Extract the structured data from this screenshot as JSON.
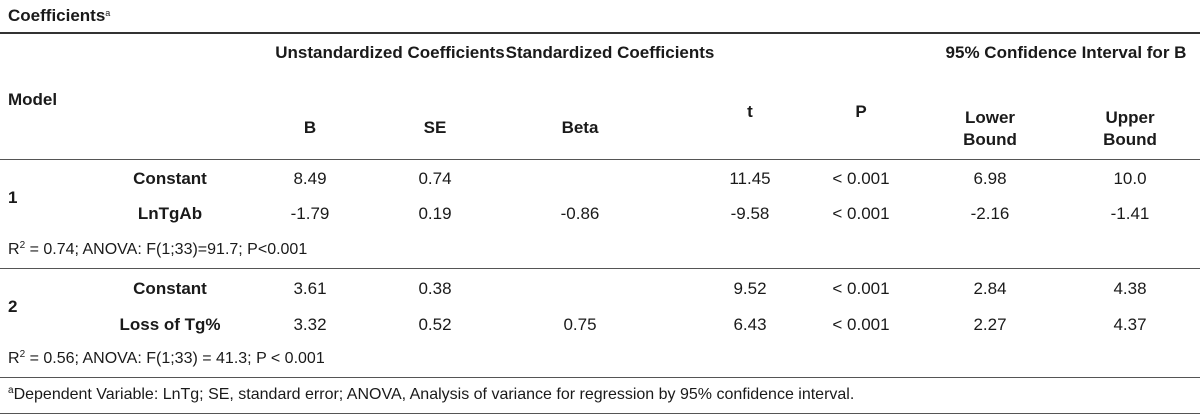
{
  "title": "Coefficients",
  "title_sup": "a",
  "headers": {
    "model": "Model",
    "unstd_group": "Unstandardized Coefficients",
    "std_group": "Standardized Coefficients",
    "ci_group": "95% Confidence Interval for B",
    "t": "t",
    "p": "P",
    "b": "B",
    "se": "SE",
    "beta": "Beta",
    "lower": "Lower Bound",
    "upper": "Upper Bound"
  },
  "models": [
    {
      "id": "1",
      "rows": [
        {
          "name": "Constant",
          "b": "8.49",
          "se": "0.74",
          "beta": "",
          "t": "11.45",
          "p": "< 0.001",
          "lower": "6.98",
          "upper": "10.0"
        },
        {
          "name": "LnTgAb",
          "b": "-1.79",
          "se": "0.19",
          "beta": "-0.86",
          "t": "-9.58",
          "p": "< 0.001",
          "lower": "-2.16",
          "upper": "-1.41"
        }
      ],
      "summary_pre": "R",
      "summary_sup": "2",
      "summary_rest": " = 0.74; ANOVA: F(1;33)=91.7; P<0.001"
    },
    {
      "id": "2",
      "rows": [
        {
          "name": "Constant",
          "b": "3.61",
          "se": "0.38",
          "beta": "",
          "t": "9.52",
          "p": "< 0.001",
          "lower": "2.84",
          "upper": "4.38"
        },
        {
          "name": "Loss of Tg%",
          "b": "3.32",
          "se": "0.52",
          "beta": "0.75",
          "t": "6.43",
          "p": "< 0.001",
          "lower": "2.27",
          "upper": "4.37"
        }
      ],
      "summary_pre": "R",
      "summary_sup": "2",
      "summary_rest": " = 0.56; ANOVA: F(1;33) = 41.3; P < 0.001"
    }
  ],
  "footnote_sup": "a",
  "footnote": "Dependent Variable: LnTg; SE, standard error; ANOVA, Analysis of variance for regression by 95% confidence interval."
}
